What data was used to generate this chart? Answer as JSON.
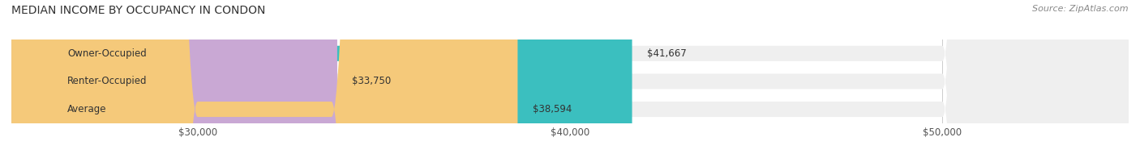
{
  "title": "MEDIAN INCOME BY OCCUPANCY IN CONDON",
  "source": "Source: ZipAtlas.com",
  "categories": [
    "Owner-Occupied",
    "Renter-Occupied",
    "Average"
  ],
  "values": [
    41667,
    33750,
    38594
  ],
  "bar_colors": [
    "#3bbfbf",
    "#c9a8d4",
    "#f5c97a"
  ],
  "bar_bg_color": "#efefef",
  "value_labels": [
    "$41,667",
    "$33,750",
    "$38,594"
  ],
  "xlim_min": 25000,
  "xlim_max": 55000,
  "xticks": [
    30000,
    40000,
    50000
  ],
  "xtick_labels": [
    "$30,000",
    "$40,000",
    "$50,000"
  ],
  "title_fontsize": 10,
  "label_fontsize": 8.5,
  "source_fontsize": 8,
  "bar_height": 0.55,
  "background_color": "#ffffff"
}
